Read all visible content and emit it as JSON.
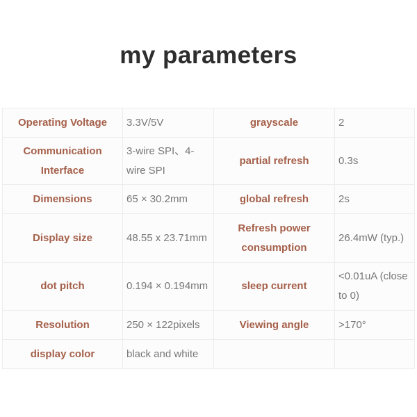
{
  "title": "my parameters",
  "rows": [
    {
      "k1": "Operating Voltage",
      "v1": "3.3V/5V",
      "k2": "grayscale",
      "v2": "2"
    },
    {
      "k1": "Communication Interface",
      "v1": "3-wire SPI、4-wire SPI",
      "k2": "partial refresh",
      "v2": "0.3s"
    },
    {
      "k1": "Dimensions",
      "v1": "65 × 30.2mm",
      "k2": "global refresh",
      "v2": "2s"
    },
    {
      "k1": "Display size",
      "v1": "48.55 x 23.71mm",
      "k2": "Refresh power consumption",
      "v2": "26.4mW (typ.)"
    },
    {
      "k1": "dot pitch",
      "v1": "0.194 × 0.194mm",
      "k2": "sleep current",
      "v2": "<0.01uA (close to 0)"
    },
    {
      "k1": "Resolution",
      "v1": "250 × 122pixels",
      "k2": "Viewing angle",
      "v2": ">170°"
    },
    {
      "k1": "display color",
      "v1": "black and white",
      "k2": "",
      "v2": ""
    }
  ]
}
